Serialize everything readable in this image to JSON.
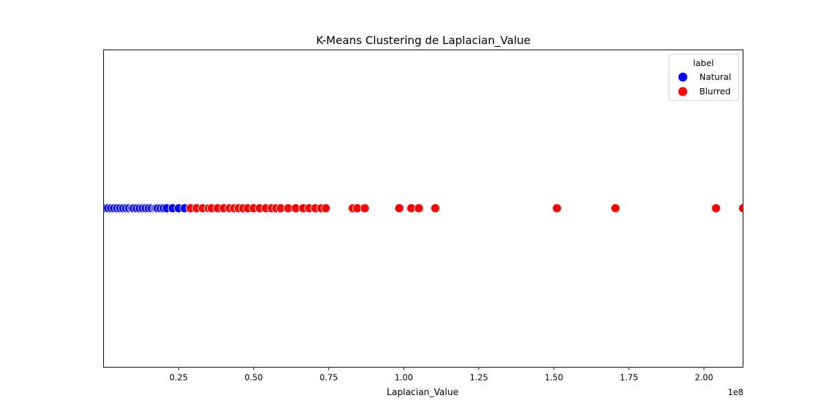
{
  "chart_data": {
    "type": "scatter",
    "title": "K-Means Clustering de Laplacian_Value",
    "xlabel": "Laplacian_Value",
    "x_offset_label": "1e8",
    "xlim": [
      0,
      2.13
    ],
    "x_ticks": [
      0.25,
      0.5,
      0.75,
      1.0,
      1.25,
      1.5,
      1.75,
      2.0
    ],
    "x_tick_labels": [
      "0.25",
      "0.50",
      "0.75",
      "1.00",
      "1.25",
      "1.50",
      "1.75",
      "2.00"
    ],
    "y_ticks_visible": false,
    "grid": false,
    "legend": {
      "title": "label",
      "placement": "top-right"
    },
    "series": [
      {
        "name": "Natural",
        "color": "#0000ff",
        "x": [
          0.002,
          0.015,
          0.025,
          0.035,
          0.045,
          0.055,
          0.065,
          0.075,
          0.085,
          0.095,
          0.1,
          0.11,
          0.12,
          0.13,
          0.14,
          0.15,
          0.16,
          0.17,
          0.175,
          0.18,
          0.19,
          0.2,
          0.21,
          0.23,
          0.25,
          0.27
        ]
      },
      {
        "name": "Blurred",
        "color": "#ff0000",
        "x": [
          0.29,
          0.31,
          0.33,
          0.35,
          0.36,
          0.38,
          0.4,
          0.42,
          0.435,
          0.45,
          0.465,
          0.48,
          0.5,
          0.52,
          0.54,
          0.56,
          0.575,
          0.59,
          0.615,
          0.64,
          0.665,
          0.685,
          0.705,
          0.725,
          0.74,
          0.83,
          0.845,
          0.87,
          0.985,
          1.025,
          1.05,
          1.105,
          1.51,
          1.705,
          2.04,
          2.13
        ]
      }
    ]
  }
}
